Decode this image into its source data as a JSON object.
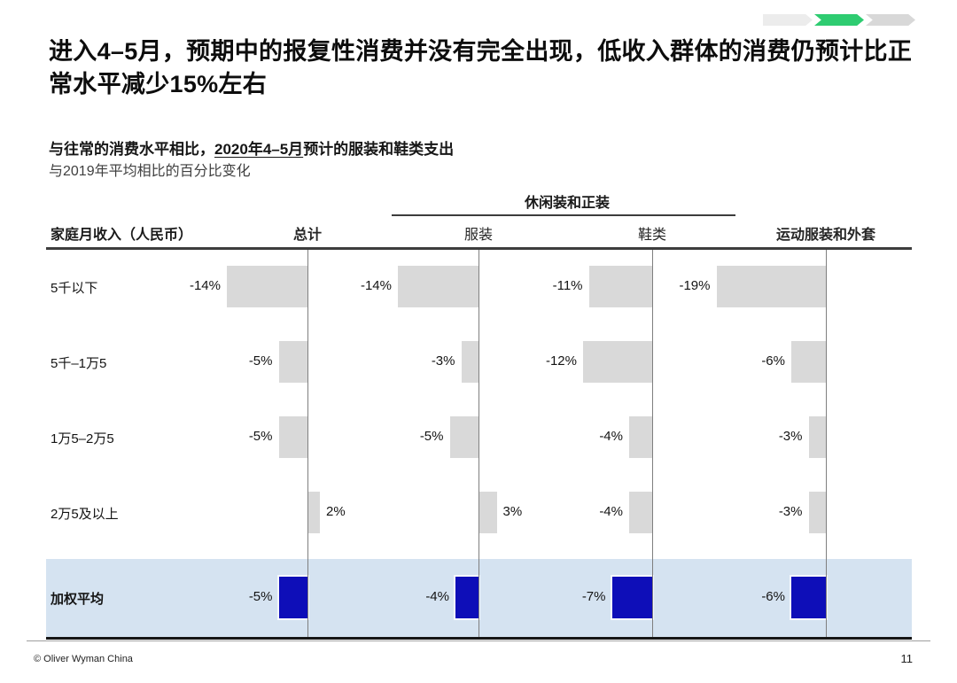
{
  "slide": {
    "title": "进入4–5月，预期中的报复性消费并没有完全出现，低收入群体的消费仍预计比正常水平减少15%左右",
    "subtitle_prefix": "与往常的消费水平相比，",
    "subtitle_underlined": "2020年4–5月",
    "subtitle_suffix": "预计的服装和鞋类支出",
    "subtitle_note": "与2019年平均相比的百分比变化",
    "progress_segments": [
      {
        "name": "step-1",
        "color": "#ececec"
      },
      {
        "name": "step-2-active",
        "color": "#2ecc71"
      },
      {
        "name": "step-3",
        "color": "#d8d8d8"
      }
    ],
    "footer": {
      "copyright": "© Oliver Wyman China",
      "page_number": "11"
    }
  },
  "chart_data": {
    "type": "bar",
    "orientation": "horizontal",
    "value_unit": "%",
    "row_axis_label": "家庭月收入（人民币）",
    "group_header": {
      "label": "休闲装和正装",
      "spans": [
        "服装",
        "鞋类"
      ]
    },
    "columns": [
      "总计",
      "服装",
      "鞋类",
      "运动服装和外套"
    ],
    "rows": [
      {
        "label": "5千以下",
        "values": [
          -14,
          -14,
          -11,
          -19
        ],
        "highlight": false
      },
      {
        "label": "5千–1万5",
        "values": [
          -5,
          -3,
          -12,
          -6
        ],
        "highlight": false
      },
      {
        "label": "1万5–2万5",
        "values": [
          -5,
          -5,
          -4,
          -3
        ],
        "highlight": false
      },
      {
        "label": "2万5及以上",
        "values": [
          2,
          3,
          -4,
          -3
        ],
        "highlight": false
      },
      {
        "label": "加权平均",
        "values": [
          -5,
          -4,
          -7,
          -6
        ],
        "highlight": true
      }
    ],
    "colors": {
      "bar": "#d9d9d9",
      "highlight_bar": "#0e0eb8",
      "highlight_band": "#d5e3f1"
    }
  }
}
